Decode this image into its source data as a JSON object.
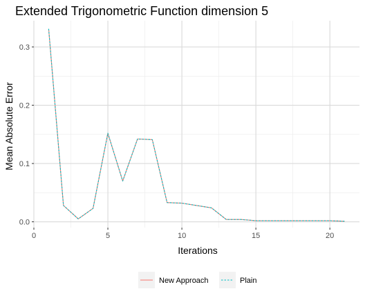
{
  "chart_data": {
    "type": "line",
    "title": "Extended Trigonometric Function dimension 5",
    "xlabel": "Iterations",
    "ylabel": "Mean Absolute Error",
    "xlim": [
      0,
      22
    ],
    "ylim": [
      -0.01,
      0.345
    ],
    "x_ticks": [
      0,
      5,
      10,
      15,
      20
    ],
    "y_ticks": [
      0.0,
      0.1,
      0.2,
      0.3
    ],
    "x_tick_labels": [
      "0",
      "5",
      "10",
      "15",
      "20"
    ],
    "y_tick_labels": [
      "0.0",
      "0.1",
      "0.2",
      "0.3"
    ],
    "grid": true,
    "legend_position": "bottom",
    "x": [
      1,
      2,
      3,
      4,
      5,
      6,
      7,
      8,
      9,
      10,
      11,
      12,
      13,
      14,
      15,
      16,
      17,
      18,
      19,
      20,
      21
    ],
    "series": [
      {
        "name": "New Approach",
        "color": "#F8766D",
        "dash": "solid",
        "values": [
          0.331,
          0.028,
          0.005,
          0.023,
          0.152,
          0.07,
          0.142,
          0.141,
          0.033,
          0.032,
          0.028,
          0.024,
          0.004,
          0.004,
          0.002,
          0.002,
          0.002,
          0.002,
          0.002,
          0.002,
          0.001
        ]
      },
      {
        "name": "Plain",
        "color": "#00BFC4",
        "dash": "dotted",
        "values": [
          0.331,
          0.028,
          0.005,
          0.023,
          0.152,
          0.07,
          0.142,
          0.141,
          0.033,
          0.032,
          0.028,
          0.024,
          0.004,
          0.004,
          0.002,
          0.002,
          0.002,
          0.002,
          0.002,
          0.002,
          0.001
        ]
      }
    ]
  }
}
